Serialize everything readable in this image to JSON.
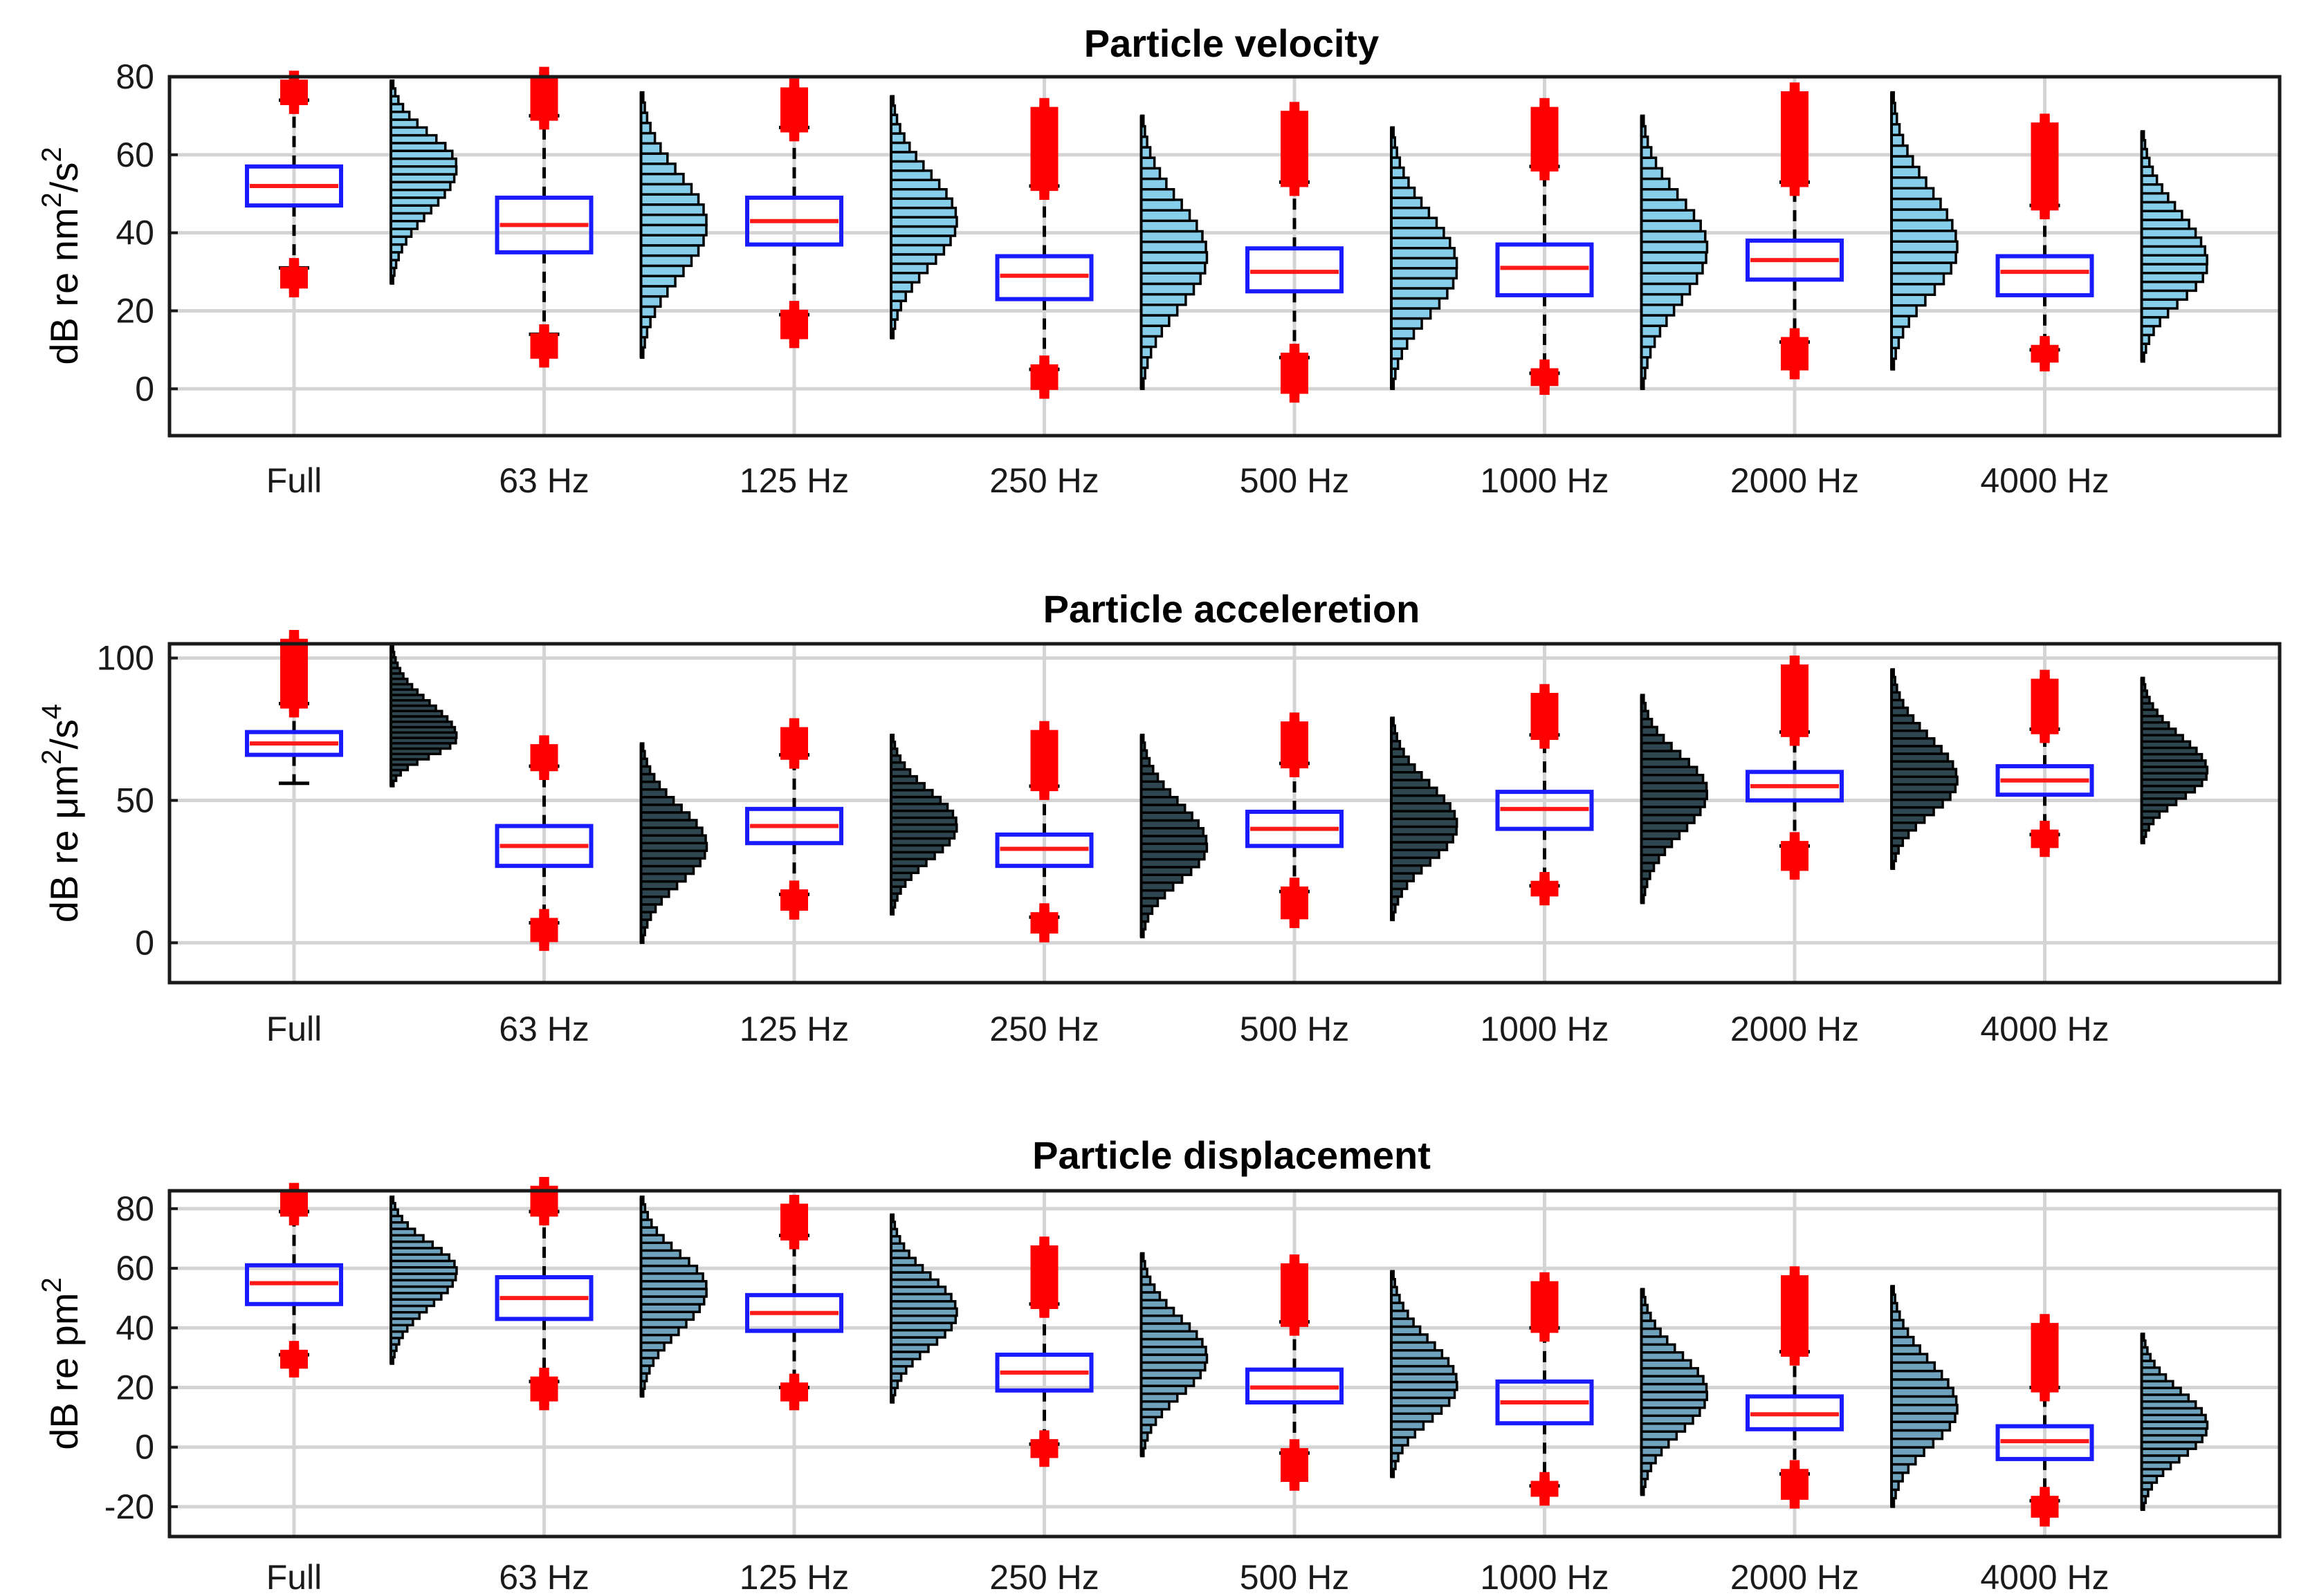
{
  "chart_data": [
    {
      "type": "box",
      "title": "Particle velocity",
      "ylabel": "dB re nm²/s²",
      "ylabel_main": "dB re nm",
      "ylabel_sup1": "2",
      "ylabel_mid": "/s",
      "ylabel_sup2": "2",
      "ylim": [
        -12,
        80
      ],
      "yticks": [
        0,
        20,
        40,
        60,
        80
      ],
      "ytick_labels": [
        "0",
        "20",
        "40",
        "60",
        "80"
      ],
      "categories": [
        "Full",
        "63 Hz",
        "125 Hz",
        "250 Hz",
        "500 Hz",
        "1000 Hz",
        "2000 Hz",
        "4000 Hz"
      ],
      "hist_color": "#87ceeb",
      "boxes": [
        {
          "q1": 47,
          "median": 52,
          "q3": 57,
          "whisker_low": 31,
          "whisker_high": 74,
          "outliers_low": [
            27,
            30
          ],
          "outliers_high": [
            74,
            78
          ]
        },
        {
          "q1": 35,
          "median": 42,
          "q3": 49,
          "whisker_low": 14,
          "whisker_high": 70,
          "outliers_low": [
            9,
            13
          ],
          "outliers_high": [
            70,
            79
          ]
        },
        {
          "q1": 37,
          "median": 43,
          "q3": 49,
          "whisker_low": 19,
          "whisker_high": 67,
          "outliers_low": [
            14,
            19
          ],
          "outliers_high": [
            67,
            76
          ]
        },
        {
          "q1": 23,
          "median": 29,
          "q3": 34,
          "whisker_low": 5,
          "whisker_high": 52,
          "outliers_low": [
            1,
            5
          ],
          "outliers_high": [
            52,
            71
          ]
        },
        {
          "q1": 25,
          "median": 30,
          "q3": 36,
          "whisker_low": 8,
          "whisker_high": 53,
          "outliers_low": [
            0,
            8
          ],
          "outliers_high": [
            53,
            70
          ]
        },
        {
          "q1": 24,
          "median": 31,
          "q3": 37,
          "whisker_low": 4,
          "whisker_high": 57,
          "outliers_low": [
            2,
            4
          ],
          "outliers_high": [
            57,
            71
          ]
        },
        {
          "q1": 28,
          "median": 33,
          "q3": 38,
          "whisker_low": 12,
          "whisker_high": 53,
          "outliers_low": [
            6,
            12
          ],
          "outliers_high": [
            53,
            75
          ]
        },
        {
          "q1": 24,
          "median": 30,
          "q3": 34,
          "whisker_low": 10,
          "whisker_high": 47,
          "outliers_low": [
            8,
            10
          ],
          "outliers_high": [
            47,
            67
          ]
        }
      ],
      "histograms": [
        {
          "range": [
            27,
            79
          ],
          "peak": 57
        },
        {
          "range": [
            8,
            76
          ],
          "peak": 42
        },
        {
          "range": [
            13,
            75
          ],
          "peak": 43
        },
        {
          "range": [
            0,
            70
          ],
          "peak": 34
        },
        {
          "range": [
            0,
            67
          ],
          "peak": 31
        },
        {
          "range": [
            0,
            70
          ],
          "peak": 36
        },
        {
          "range": [
            5,
            76
          ],
          "peak": 36
        },
        {
          "range": [
            7,
            66
          ],
          "peak": 32
        }
      ]
    },
    {
      "type": "box",
      "title": "Particle acceleretion",
      "ylabel": "dB re μm²/s⁴",
      "ylabel_main": "dB re μm",
      "ylabel_sup1": "2",
      "ylabel_mid": "/s",
      "ylabel_sup2": "4",
      "ylim": [
        -14,
        105
      ],
      "yticks": [
        0,
        50,
        100
      ],
      "ytick_labels": [
        "0",
        "50",
        "100"
      ],
      "categories": [
        "Full",
        "63 Hz",
        "125 Hz",
        "250 Hz",
        "500 Hz",
        "1000 Hz",
        "2000 Hz",
        "4000 Hz"
      ],
      "hist_color": "#2e4650",
      "boxes": [
        {
          "q1": 66,
          "median": 70,
          "q3": 74,
          "whisker_low": 56,
          "whisker_high": 84,
          "outliers_low": [],
          "outliers_high": [
            84,
            105
          ]
        },
        {
          "q1": 27,
          "median": 34,
          "q3": 41,
          "whisker_low": 7,
          "whisker_high": 62,
          "outliers_low": [
            2,
            7
          ],
          "outliers_high": [
            62,
            68
          ]
        },
        {
          "q1": 35,
          "median": 41,
          "q3": 47,
          "whisker_low": 17,
          "whisker_high": 66,
          "outliers_low": [
            13,
            17
          ],
          "outliers_high": [
            66,
            74
          ]
        },
        {
          "q1": 27,
          "median": 33,
          "q3": 38,
          "whisker_low": 9,
          "whisker_high": 55,
          "outliers_low": [
            5,
            9
          ],
          "outliers_high": [
            55,
            73
          ]
        },
        {
          "q1": 34,
          "median": 40,
          "q3": 46,
          "whisker_low": 18,
          "whisker_high": 63,
          "outliers_low": [
            10,
            18
          ],
          "outliers_high": [
            63,
            76
          ]
        },
        {
          "q1": 40,
          "median": 47,
          "q3": 53,
          "whisker_low": 20,
          "whisker_high": 73,
          "outliers_low": [
            18,
            20
          ],
          "outliers_high": [
            73,
            86
          ]
        },
        {
          "q1": 50,
          "median": 55,
          "q3": 60,
          "whisker_low": 34,
          "whisker_high": 74,
          "outliers_low": [
            27,
            34
          ],
          "outliers_high": [
            74,
            96
          ]
        },
        {
          "q1": 52,
          "median": 57,
          "q3": 62,
          "whisker_low": 38,
          "whisker_high": 75,
          "outliers_low": [
            35,
            38
          ],
          "outliers_high": [
            75,
            91
          ]
        }
      ],
      "histograms": [
        {
          "range": [
            55,
            104
          ],
          "peak": 72
        },
        {
          "range": [
            0,
            70
          ],
          "peak": 34
        },
        {
          "range": [
            10,
            73
          ],
          "peak": 41
        },
        {
          "range": [
            2,
            73
          ],
          "peak": 34
        },
        {
          "range": [
            8,
            79
          ],
          "peak": 41
        },
        {
          "range": [
            14,
            87
          ],
          "peak": 53
        },
        {
          "range": [
            26,
            96
          ],
          "peak": 57
        },
        {
          "range": [
            35,
            93
          ],
          "peak": 60
        }
      ]
    },
    {
      "type": "box",
      "title": "Particle displacement",
      "ylabel": "dB re pm²",
      "ylabel_main": "dB re pm",
      "ylabel_sup1": "2",
      "ylabel_mid": "",
      "ylabel_sup2": "",
      "ylim": [
        -30,
        86
      ],
      "yticks": [
        -20,
        0,
        20,
        40,
        60,
        80
      ],
      "ytick_labels": [
        "-20",
        "0",
        "20",
        "40",
        "60",
        "80"
      ],
      "categories": [
        "Full",
        "63 Hz",
        "125 Hz",
        "250 Hz",
        "500 Hz",
        "1000 Hz",
        "2000 Hz",
        "4000 Hz"
      ],
      "hist_color": "#6fa3bd",
      "boxes": [
        {
          "q1": 48,
          "median": 55,
          "q3": 61,
          "whisker_low": 31,
          "whisker_high": 79,
          "outliers_low": [
            28,
            31
          ],
          "outliers_high": [
            79,
            84
          ]
        },
        {
          "q1": 43,
          "median": 50,
          "q3": 57,
          "whisker_low": 22,
          "whisker_high": 79,
          "outliers_low": [
            17,
            22
          ],
          "outliers_high": [
            79,
            86
          ]
        },
        {
          "q1": 39,
          "median": 45,
          "q3": 51,
          "whisker_low": 20,
          "whisker_high": 71,
          "outliers_low": [
            17,
            20
          ],
          "outliers_high": [
            71,
            80
          ]
        },
        {
          "q1": 19,
          "median": 25,
          "q3": 31,
          "whisker_low": 1,
          "whisker_high": 48,
          "outliers_low": [
            -2,
            1
          ],
          "outliers_high": [
            48,
            66
          ]
        },
        {
          "q1": 15,
          "median": 20,
          "q3": 26,
          "whisker_low": -2,
          "whisker_high": 42,
          "outliers_low": [
            -10,
            -2
          ],
          "outliers_high": [
            42,
            60
          ]
        },
        {
          "q1": 8,
          "median": 15,
          "q3": 22,
          "whisker_low": -13,
          "whisker_high": 40,
          "outliers_low": [
            -15,
            -13
          ],
          "outliers_high": [
            40,
            54
          ]
        },
        {
          "q1": 6,
          "median": 11,
          "q3": 17,
          "whisker_low": -9,
          "whisker_high": 32,
          "outliers_low": [
            -16,
            -9
          ],
          "outliers_high": [
            32,
            56
          ]
        },
        {
          "q1": -4,
          "median": 2,
          "q3": 7,
          "whisker_low": -18,
          "whisker_high": 20,
          "outliers_low": [
            -22,
            -18
          ],
          "outliers_high": [
            20,
            40
          ]
        }
      ],
      "histograms": [
        {
          "range": [
            28,
            84
          ],
          "peak": 59
        },
        {
          "range": [
            17,
            84
          ],
          "peak": 53
        },
        {
          "range": [
            15,
            78
          ],
          "peak": 45
        },
        {
          "range": [
            -3,
            65
          ],
          "peak": 30
        },
        {
          "range": [
            -10,
            59
          ],
          "peak": 21
        },
        {
          "range": [
            -16,
            53
          ],
          "peak": 18
        },
        {
          "range": [
            -20,
            54
          ],
          "peak": 13
        },
        {
          "range": [
            -21,
            38
          ],
          "peak": 7
        }
      ]
    }
  ]
}
